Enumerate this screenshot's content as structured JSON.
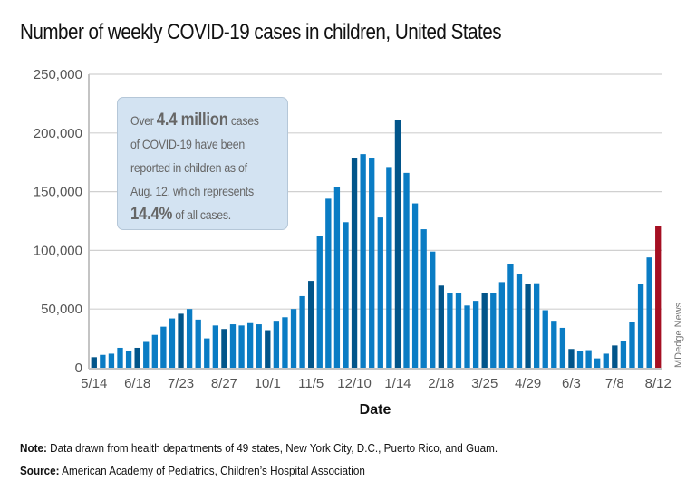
{
  "title": "Number of weekly COVID-19 cases in children, United States",
  "callout": {
    "line1_pre": "Over ",
    "line1_big": "4.4 million",
    "line1_post": " cases",
    "line2": "of COVID-19 have been",
    "line3": "reported in children as of",
    "line4": "Aug. 12, which represents",
    "line5_big": "14.4%",
    "line5_post": " of all cases."
  },
  "footer": {
    "note_label": "Note:",
    "note_text": " Data drawn from health departments of 49 states, New York City, D.C., Puerto Rico, and Guam.",
    "source_label": "Source:",
    "source_text": " American Academy of Pediatrics, Children’s Hospital Association"
  },
  "credit": "MDedge News",
  "colors": {
    "bar": "#0a7cc4",
    "bar_highlight": "#02558a",
    "bar_latest": "#a50f22",
    "grid": "#d0d0d0",
    "callout_bg": "#d3e3f2"
  },
  "chart_data": {
    "type": "bar",
    "title": "Number of weekly COVID-19 cases in children, United States",
    "xlabel": "Date",
    "ylabel": "",
    "ylim": [
      0,
      250000
    ],
    "yticks": [
      0,
      50000,
      100000,
      150000,
      200000,
      250000
    ],
    "ytick_labels": [
      "0",
      "50,000",
      "100,000",
      "150,000",
      "200,000",
      "250,000"
    ],
    "xtick_labels": [
      "5/14",
      "6/18",
      "7/23",
      "8/27",
      "10/1",
      "11/5",
      "12/10",
      "1/14",
      "2/18",
      "3/25",
      "4/29",
      "6/3",
      "7/8",
      "8/12"
    ],
    "xtick_every": 5,
    "grid": true,
    "legend": "none",
    "highlight_every": 5,
    "latest_highlighted": true,
    "values": [
      9000,
      11000,
      12000,
      17000,
      14000,
      17000,
      22000,
      28000,
      35000,
      42000,
      46000,
      50000,
      41000,
      25000,
      36000,
      33000,
      37000,
      36000,
      38000,
      37000,
      32000,
      40000,
      43000,
      50000,
      61000,
      74000,
      112000,
      144000,
      154000,
      124000,
      179000,
      182000,
      179000,
      128000,
      171000,
      211000,
      166000,
      140000,
      118000,
      99000,
      70000,
      64000,
      64000,
      53000,
      57000,
      64000,
      64000,
      73000,
      88000,
      80000,
      71000,
      72000,
      49000,
      40000,
      34000,
      16000,
      14000,
      15000,
      8000,
      12000,
      19000,
      23000,
      39000,
      71000,
      94000,
      121000
    ]
  }
}
